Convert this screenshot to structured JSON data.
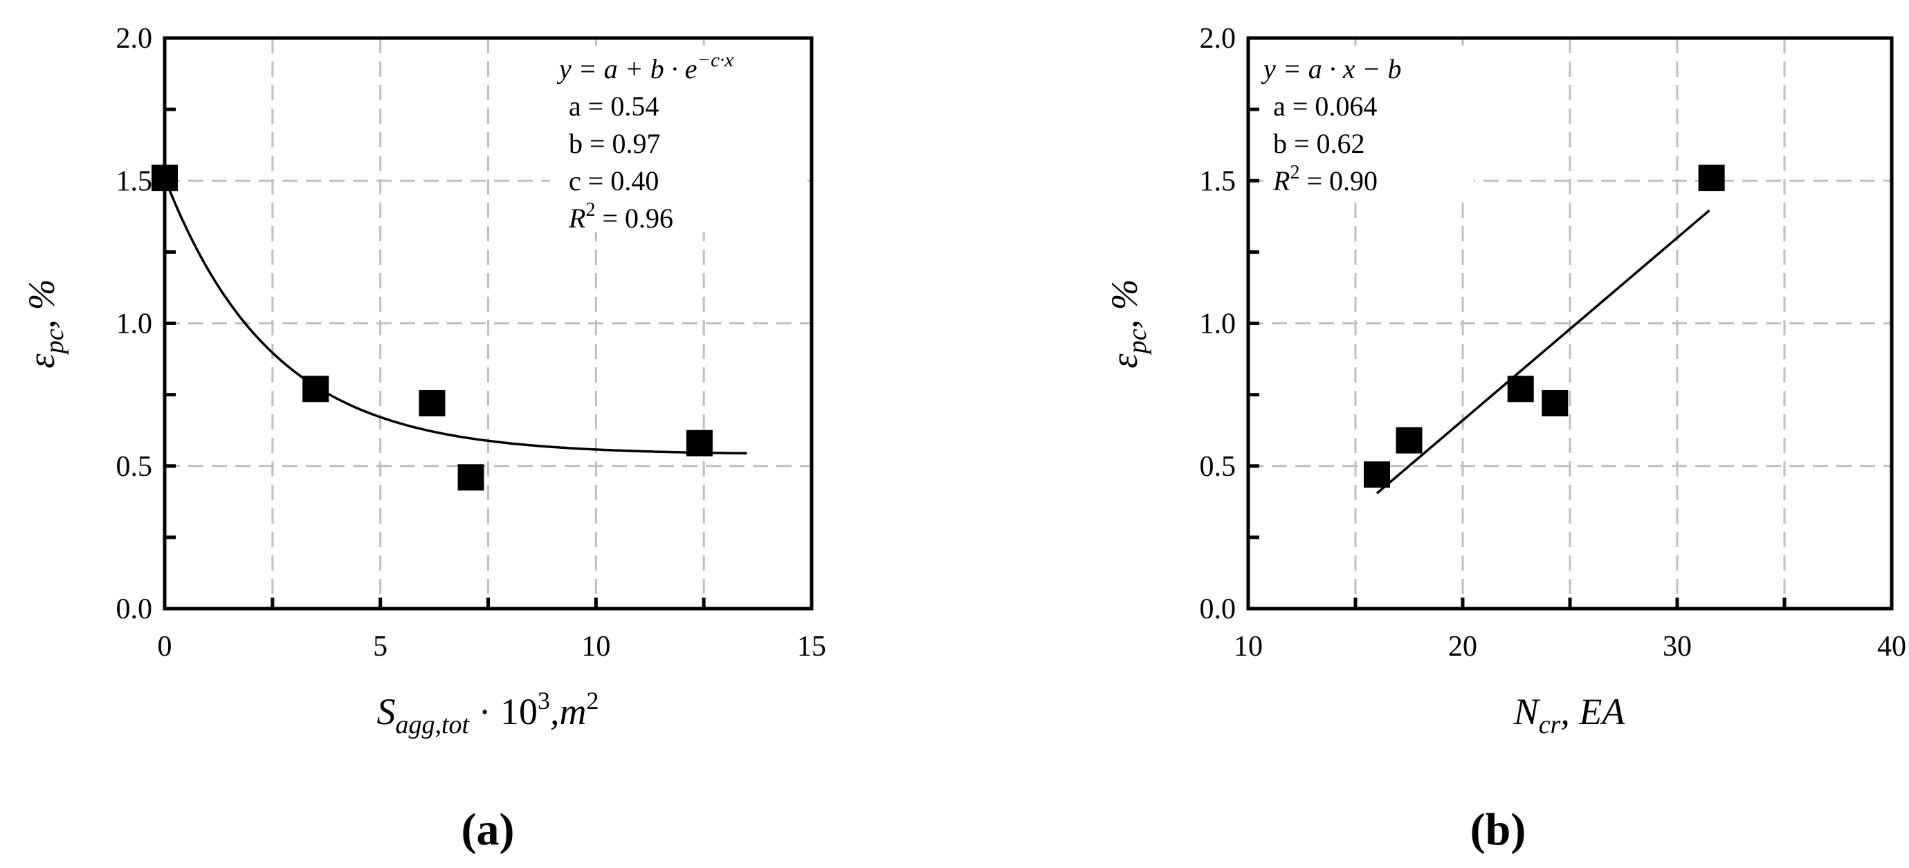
{
  "chart_data": [
    {
      "type": "scatter",
      "panel_label": "(a)",
      "xlabel": "S_agg,tot · 10^3, m^2",
      "xlabel_parts": {
        "main": "S",
        "sub": "agg,tot",
        "mid": " · 10",
        "sup1": "3",
        "tail": ",m",
        "sup2": "2"
      },
      "ylabel": "ε_pc, %",
      "ylabel_parts": {
        "main": "ε",
        "sub": "pc",
        "tail": ", %"
      },
      "xlim": [
        0,
        15
      ],
      "ylim": [
        0,
        2.0
      ],
      "xticks": [
        "0",
        "5",
        "10",
        "15"
      ],
      "yticks": [
        "0.0",
        "0.5",
        "1.0",
        "1.5",
        "2.0"
      ],
      "grid": true,
      "points": [
        {
          "x": 0,
          "y": 1.51
        },
        {
          "x": 3.5,
          "y": 0.77
        },
        {
          "x": 6.2,
          "y": 0.72
        },
        {
          "x": 7.1,
          "y": 0.46
        },
        {
          "x": 12.4,
          "y": 0.58
        }
      ],
      "fit": {
        "model": "exponential",
        "x_range": [
          0,
          13.5
        ],
        "equation_parts": {
          "lhs": "y = a + b · e",
          "sup": "−c·x"
        },
        "params": [
          {
            "label": "a = 0.54",
            "value": 0.54
          },
          {
            "label": "b = 0.97",
            "value": 0.97
          },
          {
            "label": "c = 0.40",
            "value": 0.4
          }
        ],
        "r2": {
          "label": "R",
          "sup": "2",
          "text": " = 0.96"
        }
      }
    },
    {
      "type": "scatter",
      "panel_label": "(b)",
      "xlabel": "N_cr, EA",
      "xlabel_parts": {
        "main": "N",
        "sub": "cr",
        "tail": ", EA"
      },
      "ylabel": "ε_pc, %",
      "ylabel_parts": {
        "main": "ε",
        "sub": "pc",
        "tail": ", %"
      },
      "xlim": [
        10,
        40
      ],
      "ylim": [
        0,
        2.0
      ],
      "xticks": [
        "10",
        "20",
        "30",
        "40"
      ],
      "yticks": [
        "0.0",
        "0.5",
        "1.0",
        "1.5",
        "2.0"
      ],
      "grid": true,
      "points": [
        {
          "x": 16,
          "y": 0.47
        },
        {
          "x": 17.5,
          "y": 0.59
        },
        {
          "x": 22.7,
          "y": 0.77
        },
        {
          "x": 24.3,
          "y": 0.72
        },
        {
          "x": 31.6,
          "y": 1.51
        }
      ],
      "fit": {
        "model": "linear",
        "x_range": [
          16,
          31.5
        ],
        "equation_parts": {
          "lhs": "y = a · x − b"
        },
        "params": [
          {
            "label": "a = 0.064",
            "value": 0.064
          },
          {
            "label": "b = 0.62",
            "value": 0.62
          }
        ],
        "r2": {
          "label": "R",
          "sup": "2",
          "text": " = 0.90"
        }
      }
    }
  ]
}
